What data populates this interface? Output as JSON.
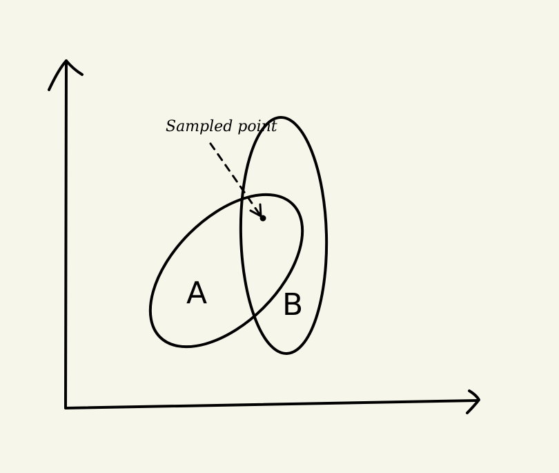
{
  "diagram": {
    "background_color": "#f7f6ea",
    "stroke_color": "#000000",
    "annotation": {
      "text": "Sampled point"
    },
    "sets": [
      {
        "label": "A"
      },
      {
        "label": "B"
      }
    ],
    "axes": {
      "x_label": "",
      "y_label": ""
    }
  }
}
